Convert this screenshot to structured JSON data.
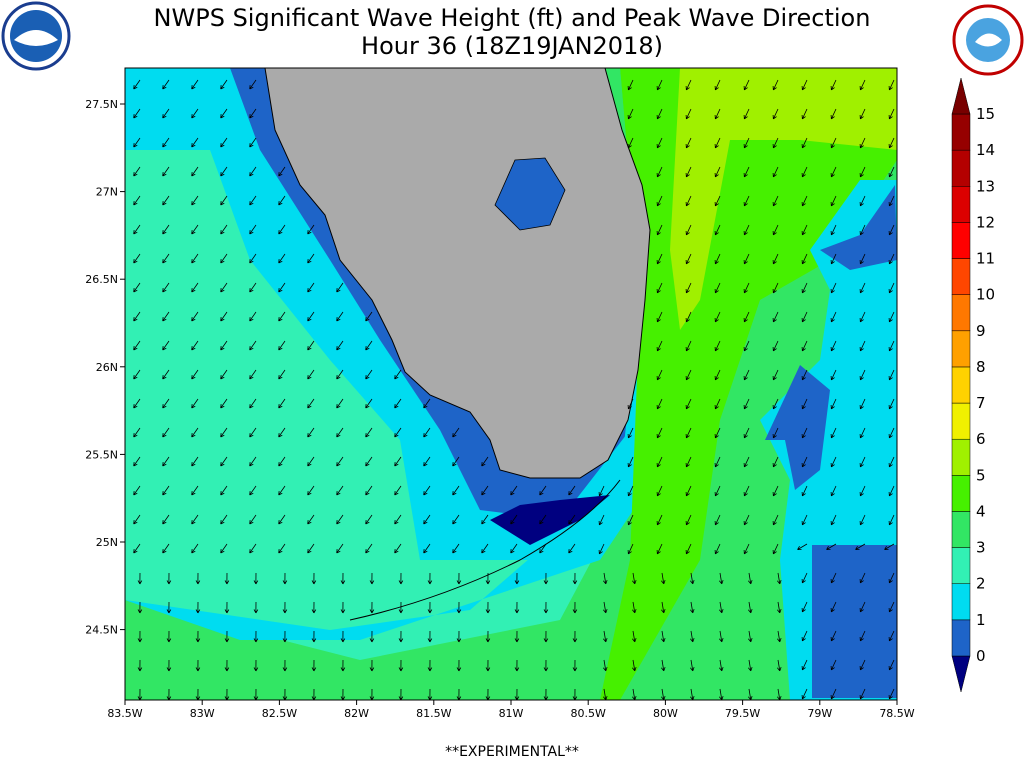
{
  "header": {
    "title": "NWPS Significant Wave Height (ft) and Peak Wave Direction",
    "subtitle": "Hour 36 (18Z19JAN2018)"
  },
  "map": {
    "lon_labels": [
      "83.5W",
      "83W",
      "82.5W",
      "82W",
      "81.5W",
      "81W",
      "80.5W",
      "80W",
      "79.5W",
      "79W",
      "78.5W"
    ],
    "lat_labels": [
      "27.5N",
      "27N",
      "26.5N",
      "26N",
      "25.5N",
      "25N",
      "24.5N"
    ]
  },
  "colorbar": {
    "labels": [
      0,
      1,
      2,
      3,
      4,
      5,
      6,
      7,
      8,
      9,
      10,
      11,
      12,
      13,
      14,
      15
    ],
    "colors": [
      "#000080",
      "#1e64c8",
      "#00dcf0",
      "#32f0b4",
      "#32e664",
      "#46f000",
      "#a0f000",
      "#f0f000",
      "#ffd200",
      "#ffa000",
      "#ff7800",
      "#ff4600",
      "#ff0000",
      "#dc0000",
      "#b40000",
      "#960000",
      "#780000"
    ]
  },
  "footer": "**EXPERIMENTAL**"
}
